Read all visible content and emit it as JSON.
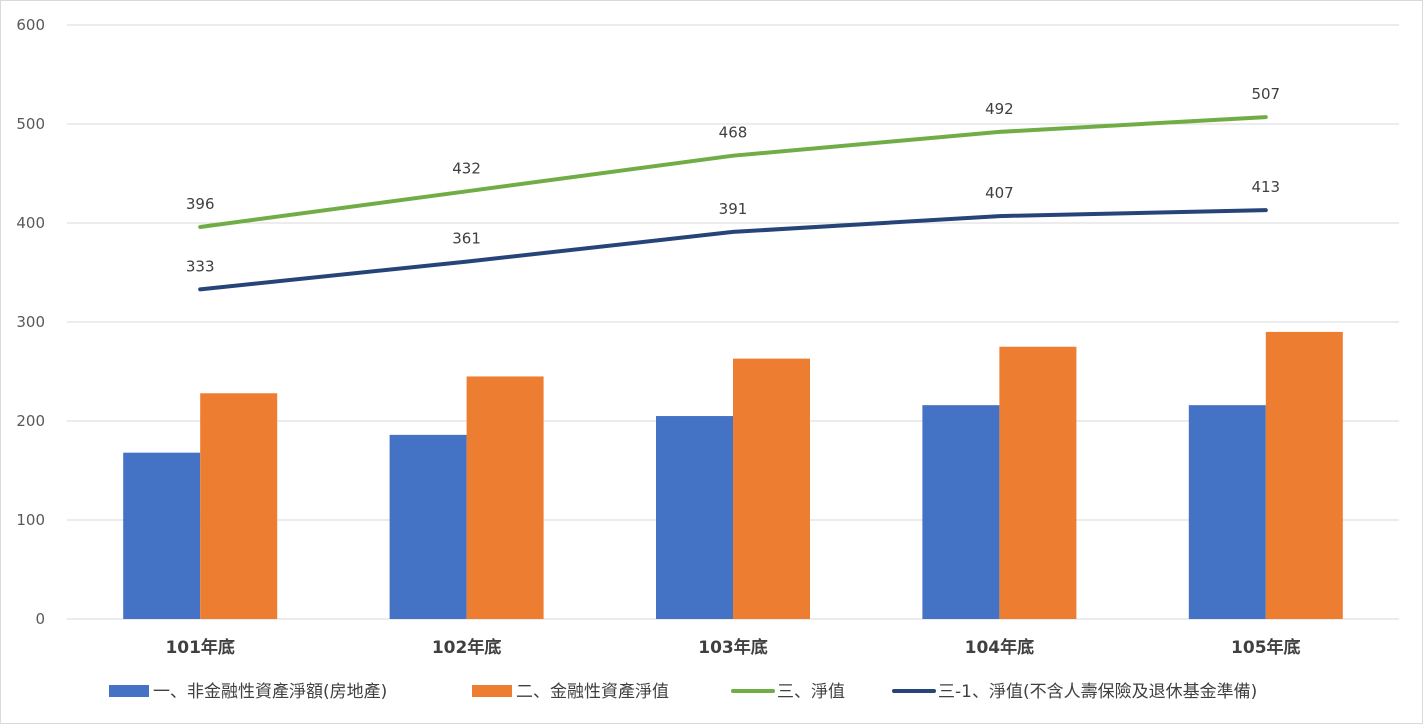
{
  "chart_data": {
    "type": "bar",
    "categories": [
      "101年底",
      "102年底",
      "103年底",
      "104年底",
      "105年底"
    ],
    "ylim": [
      0,
      600
    ],
    "yticks": [
      0,
      100,
      200,
      300,
      400,
      500,
      600
    ],
    "grid": true,
    "legend_position": "bottom",
    "series": [
      {
        "name": "一、非金融性資產淨額(房地產)",
        "kind": "bar",
        "color": "#4472c4",
        "values": [
          168,
          186,
          205,
          216,
          216
        ]
      },
      {
        "name": "二、金融性資產淨值",
        "kind": "bar",
        "color": "#ed7d31",
        "values": [
          228,
          245,
          263,
          275,
          290
        ]
      },
      {
        "name": "三、淨值",
        "kind": "line",
        "color": "#70ad47",
        "values": [
          396,
          432,
          468,
          492,
          507
        ],
        "data_labels": [
          "396",
          "432",
          "468",
          "492",
          "507"
        ]
      },
      {
        "name": "三-1、淨值(不含人壽保險及退休基金準備)",
        "kind": "line",
        "color": "#264478",
        "values": [
          333,
          361,
          391,
          407,
          413
        ],
        "data_labels": [
          "333",
          "361",
          "391",
          "407",
          "413"
        ]
      }
    ]
  }
}
